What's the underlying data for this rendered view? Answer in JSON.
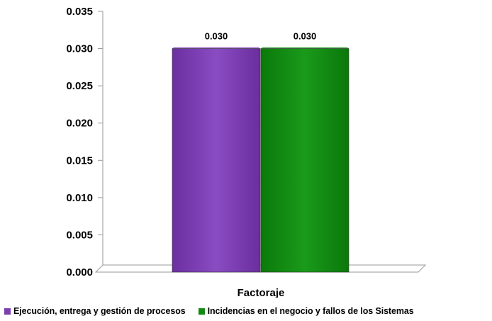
{
  "chart_data": {
    "type": "bar",
    "categories": [
      "Factoraje"
    ],
    "series": [
      {
        "name": "Ejecución, entrega y gestión de procesos",
        "values": [
          0.03
        ],
        "color": "#7b3fb0"
      },
      {
        "name": "Incidencias en el negocio y fallos de los Sistemas",
        "values": [
          0.03
        ],
        "color": "#128a12"
      }
    ],
    "data_labels": [
      "0.030",
      "0.030"
    ],
    "ylim": [
      0,
      0.035
    ],
    "yticks": [
      "0.000",
      "0.005",
      "0.010",
      "0.015",
      "0.020",
      "0.025",
      "0.030",
      "0.035"
    ],
    "legend_position": "bottom",
    "grid": false,
    "style": "3d"
  }
}
